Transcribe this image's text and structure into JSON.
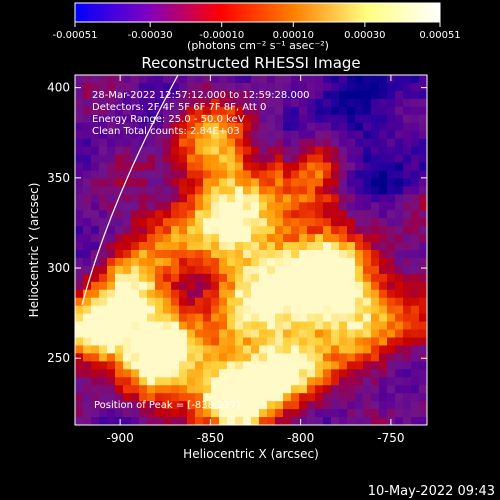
{
  "colorbar": {
    "ticks": [
      "-0.00051",
      "-0.00030",
      "-0.00010",
      "0.00010",
      "0.00030",
      "0.00051"
    ],
    "tick_values": [
      -0.00051,
      -0.0003,
      -0.0001,
      0.0001,
      0.0003,
      0.00051
    ],
    "range": [
      -0.00051,
      0.00051
    ],
    "units": "(photons cm⁻² s⁻¹ asec⁻²)",
    "gradient_colors": [
      "#0000ff",
      "#8000c0",
      "#ff0000",
      "#ff8000",
      "#ffff80",
      "#ffffff"
    ]
  },
  "title": "Reconstructed RHESSI Image",
  "info": {
    "time_range": "28-Mar-2022 12:57:12.000 to 12:59:28.000",
    "detectors": "Detectors: 2F 4F 5F 6F 7F 8F, Att 0",
    "energy": "Energy Range: 25.0 - 50.0 keV",
    "clean": "Clean    Total counts: 2.84E+03",
    "peak": "Position of Peak = [-838,237]"
  },
  "axes": {
    "xlabel": "Heliocentric X (arcsec)",
    "ylabel": "Heliocentric Y (arcsec)",
    "xlim": [
      -925,
      -730
    ],
    "ylim": [
      213,
      407
    ],
    "xticks": [
      "-900",
      "-850",
      "-800",
      "-750"
    ],
    "xtick_values": [
      -900,
      -850,
      -800,
      -750
    ],
    "yticks": [
      "250",
      "300",
      "350",
      "400"
    ],
    "ytick_values": [
      250,
      300,
      350,
      400
    ]
  },
  "peak_position": [
    -838,
    237
  ],
  "footer": {
    "date": "10-May-2022 09:43"
  }
}
